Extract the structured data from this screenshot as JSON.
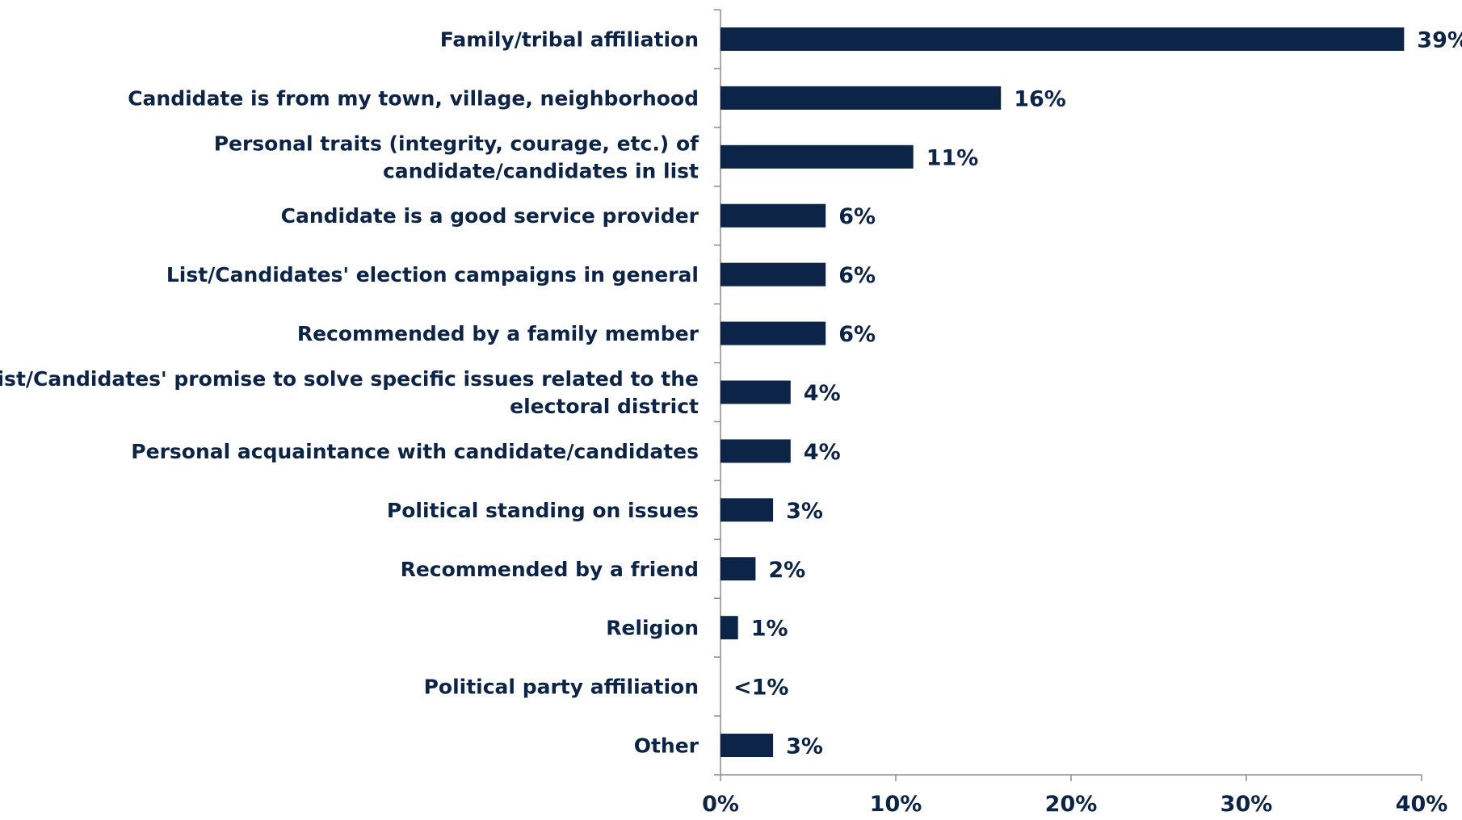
{
  "chart_data": {
    "type": "bar",
    "orientation": "horizontal",
    "title": "",
    "xlabel": "",
    "ylabel": "",
    "categories": [
      "Family/tribal affiliation",
      "Candidate is from my town, village, neighborhood",
      "Personal traits (integrity, courage, etc.) of candidate/candidates in list",
      "Candidate is a good service provider",
      "List/Candidates' election campaigns in general",
      "Recommended by a family member",
      "List/Candidates' promise to solve specific issues related to the electoral district",
      "Personal acquaintance with candidate/candidates",
      "Political standing on issues",
      "Recommended by a friend",
      "Religion",
      "Political party affiliation",
      "Other"
    ],
    "category_label_lines": [
      [
        "Family/tribal affiliation"
      ],
      [
        "Candidate is from my town, village, neighborhood"
      ],
      [
        "Personal traits (integrity, courage, etc.) of",
        "candidate/candidates in list"
      ],
      [
        "Candidate is a good service provider"
      ],
      [
        "List/Candidates' election campaigns in general"
      ],
      [
        "Recommended by a family member"
      ],
      [
        "List/Candidates' promise to solve specific issues related to the",
        "electoral district"
      ],
      [
        "Personal acquaintance with candidate/candidates"
      ],
      [
        "Political standing on issues"
      ],
      [
        "Recommended by a friend"
      ],
      [
        "Religion"
      ],
      [
        "Political party affiliation"
      ],
      [
        "Other"
      ]
    ],
    "values": [
      39,
      16,
      11,
      6,
      6,
      6,
      4,
      4,
      3,
      2,
      1,
      0.3,
      3
    ],
    "data_labels": [
      "39%",
      "16%",
      "11%",
      "6%",
      "6%",
      "6%",
      "4%",
      "4%",
      "3%",
      "2%",
      "1%",
      "<1%",
      "3%"
    ],
    "xlim": [
      0,
      40
    ],
    "x_ticks": [
      0,
      10,
      20,
      30,
      40
    ],
    "x_tick_labels": [
      "0%",
      "10%",
      "20%",
      "30%",
      "40%"
    ],
    "grid": false,
    "legend": "none",
    "colors": {
      "bar": "#0b2447",
      "text": "#0b2447",
      "axis": "#8c8c8c"
    }
  }
}
